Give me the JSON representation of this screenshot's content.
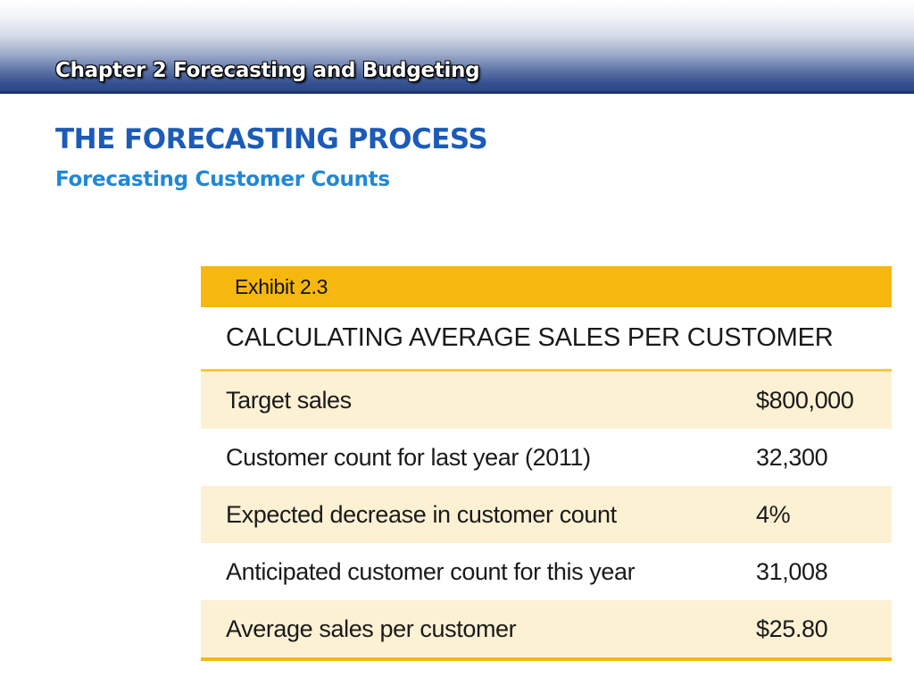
{
  "header": {
    "chapter_title": "Chapter 2 Forecasting and Budgeting"
  },
  "main": {
    "title": "THE FORECASTING PROCESS",
    "subtitle": "Forecasting Customer Counts"
  },
  "exhibit": {
    "label": "Exhibit 2.3",
    "heading": "CALCULATING AVERAGE SALES PER CUSTOMER",
    "rows": [
      {
        "label": "Target sales",
        "value": "$800,000"
      },
      {
        "label": "Customer count for last year (2011)",
        "value": "32,300"
      },
      {
        "label": "Expected decrease in customer count",
        "value": "4%"
      },
      {
        "label": "Anticipated customer count for this year",
        "value": "31,008"
      },
      {
        "label": "Average sales per customer",
        "value": "$25.80"
      }
    ]
  },
  "colors": {
    "header_blue": "#2b4686",
    "title_blue": "#1c5bb7",
    "subtitle_blue": "#2087d6",
    "exhibit_gold": "#f6b80f",
    "row_shade": "#fdf1d4"
  }
}
